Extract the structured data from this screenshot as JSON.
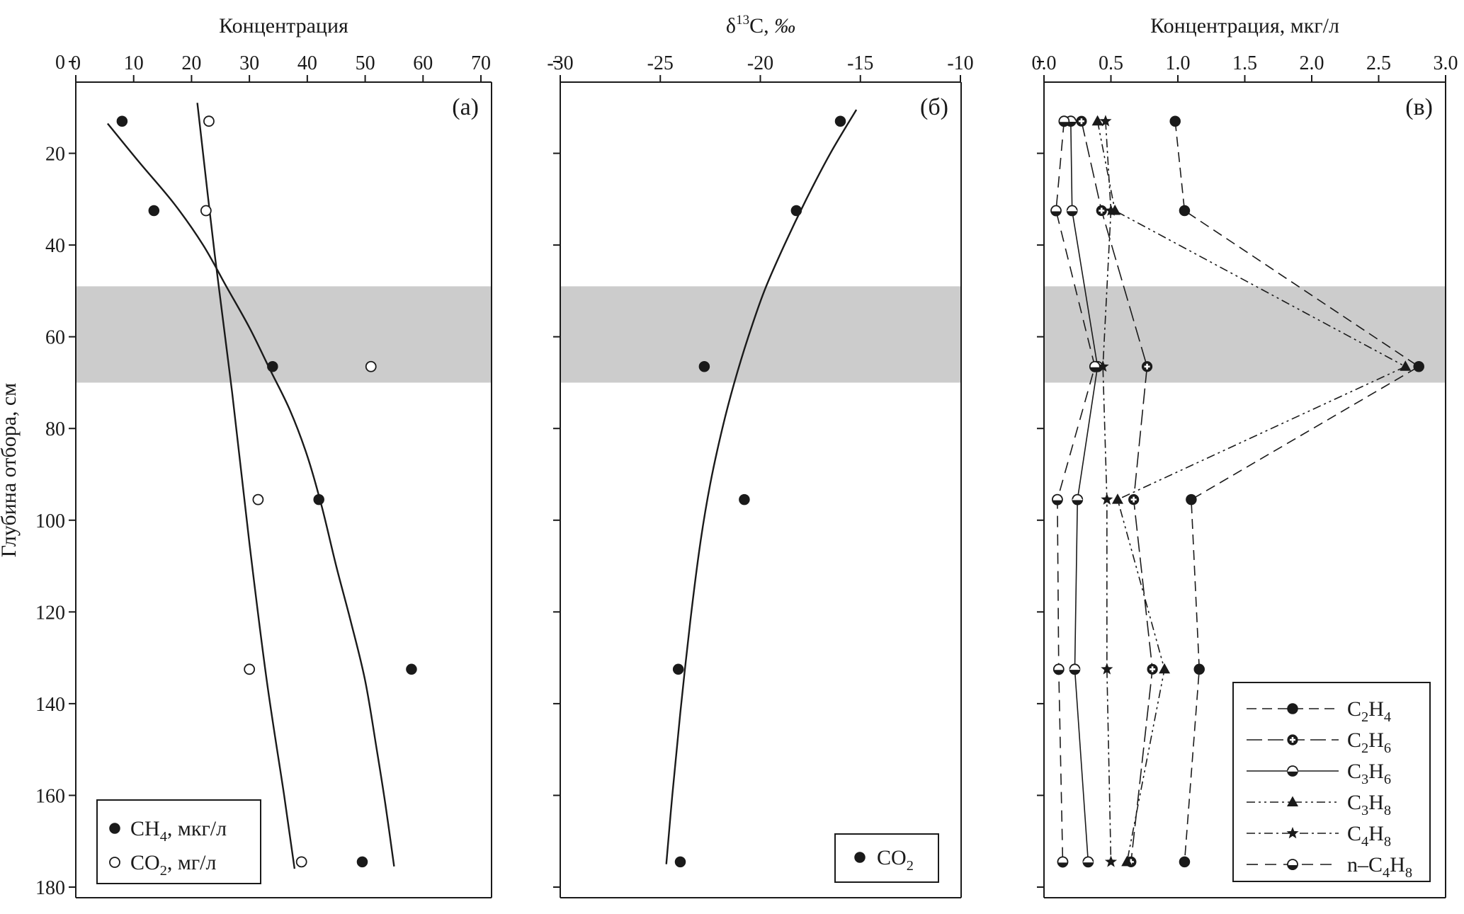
{
  "ylabel": "Глубина отбора, см",
  "band": {
    "from": 49,
    "to": 70,
    "color": "#cccccc"
  },
  "chart_data": [
    {
      "type": "scatter",
      "panel_label": "(а)",
      "xlabel": "Концентрация",
      "xlim": [
        0,
        70
      ],
      "xticks": [
        0,
        10,
        20,
        30,
        40,
        50,
        60,
        70
      ],
      "ylim": [
        0,
        180
      ],
      "yticks": [
        0,
        20,
        40,
        60,
        80,
        100,
        120,
        140,
        160,
        180
      ],
      "legend_placement": "bottom-left",
      "series": [
        {
          "name": "CH4, мкг/л",
          "name_parts": {
            "base": "CH",
            "sub": "4",
            "rest": ", мкг/л"
          },
          "marker": "filled-circle",
          "points": [
            [
              8,
              13
            ],
            [
              13.5,
              32.5
            ],
            [
              34,
              66.5
            ],
            [
              42,
              95.5
            ],
            [
              58,
              132.5
            ],
            [
              49.5,
              174.5
            ]
          ],
          "trend": [
            [
              5.5,
              13.5
            ],
            [
              11,
              22
            ],
            [
              17,
              31
            ],
            [
              22,
              40
            ],
            [
              26,
              49
            ],
            [
              30,
              58
            ],
            [
              33.5,
              67
            ],
            [
              37,
              76
            ],
            [
              40,
              86
            ],
            [
              42.5,
              97
            ],
            [
              45,
              110
            ],
            [
              47.5,
              122
            ],
            [
              50,
              135
            ],
            [
              52,
              150
            ],
            [
              53.5,
              162
            ],
            [
              55,
              175.5
            ]
          ]
        },
        {
          "name": "CO2, мг/л",
          "name_parts": {
            "base": "CO",
            "sub": "2",
            "rest": ", мг/л"
          },
          "marker": "open-circle",
          "points": [
            [
              23,
              13
            ],
            [
              22.5,
              32.5
            ],
            [
              51,
              66.5
            ],
            [
              31.5,
              95.5
            ],
            [
              30,
              132.5
            ],
            [
              39,
              174.5
            ]
          ],
          "trend": [
            [
              21,
              9
            ],
            [
              24,
              42
            ],
            [
              27,
              72
            ],
            [
              30,
              105
            ],
            [
              33,
              135
            ],
            [
              36,
              160
            ],
            [
              37.8,
              176
            ]
          ]
        }
      ]
    },
    {
      "type": "scatter",
      "panel_label": "(б)",
      "xlabel_parts": {
        "delta": "δ",
        "sup": "13",
        "mid": "C, ",
        "unit": "‰"
      },
      "xlim": [
        -30,
        -10
      ],
      "xticks": [
        -30,
        -25,
        -20,
        -15,
        -10
      ],
      "ylim": [
        0,
        180
      ],
      "yticks": [
        0,
        20,
        40,
        60,
        80,
        100,
        120,
        140,
        160,
        180
      ],
      "legend_placement": "bottom-right",
      "series": [
        {
          "name": "CO2",
          "name_parts": {
            "base": "CO",
            "sub": "2",
            "rest": ""
          },
          "marker": "filled-circle",
          "points": [
            [
              -16,
              13
            ],
            [
              -18.2,
              32.5
            ],
            [
              -22.8,
              66.5
            ],
            [
              -20.8,
              95.5
            ],
            [
              -24.1,
              132.5
            ],
            [
              -24,
              174.5
            ]
          ],
          "trend": [
            [
              -15.2,
              10.5
            ],
            [
              -16.5,
              20
            ],
            [
              -17.7,
              30
            ],
            [
              -18.8,
              40
            ],
            [
              -19.8,
              50
            ],
            [
              -20.6,
              60
            ],
            [
              -21.3,
              70
            ],
            [
              -21.9,
              80
            ],
            [
              -22.5,
              92
            ],
            [
              -23,
              105
            ],
            [
              -23.5,
              122
            ],
            [
              -24,
              142
            ],
            [
              -24.4,
              160
            ],
            [
              -24.7,
              175
            ]
          ]
        }
      ]
    },
    {
      "type": "line",
      "panel_label": "(в)",
      "xlabel": "Концентрация, мкг/л",
      "xlim": [
        0,
        3
      ],
      "xticks": [
        0,
        0.5,
        1,
        1.5,
        2,
        2.5,
        3
      ],
      "xtick_labels": [
        "0.0",
        "0.5",
        "1.0",
        "1.5",
        "2.0",
        "2.5",
        "3.0"
      ],
      "ylim": [
        0,
        180
      ],
      "yticks": [
        0,
        20,
        40,
        60,
        80,
        100,
        120,
        140,
        160,
        180
      ],
      "legend_placement": "bottom-right",
      "depths": [
        13,
        32.5,
        66.5,
        95.5,
        132.5,
        174.5
      ],
      "series": [
        {
          "name": "C2H4",
          "name_parts": {
            "base": "C",
            "s1": "2",
            "mid": "H",
            "s2": "4"
          },
          "marker": "filled-circle",
          "dash": "14,8",
          "values": [
            0.98,
            1.05,
            2.8,
            1.1,
            1.16,
            1.05
          ]
        },
        {
          "name": "C2H6",
          "name_parts": {
            "base": "C",
            "s1": "2",
            "mid": "H",
            "s2": "6"
          },
          "marker": "cross-circle",
          "dash": "22,8",
          "values": [
            0.28,
            0.43,
            0.77,
            0.67,
            0.81,
            0.65
          ]
        },
        {
          "name": "C3H6",
          "name_parts": {
            "base": "C",
            "s1": "3",
            "mid": "H",
            "s2": "6"
          },
          "marker": "half-circle",
          "dash": "",
          "values": [
            0.2,
            0.21,
            0.4,
            0.25,
            0.23,
            0.33
          ]
        },
        {
          "name": "C3H8",
          "name_parts": {
            "base": "C",
            "s1": "3",
            "mid": "H",
            "s2": "8"
          },
          "marker": "filled-triangle",
          "dash": "12,5,3,5,3,5",
          "values": [
            0.4,
            0.53,
            2.7,
            0.55,
            0.9,
            0.62
          ]
        },
        {
          "name": "C4H8",
          "name_parts": {
            "base": "C",
            "s1": "4",
            "mid": "H",
            "s2": "8"
          },
          "marker": "filled-star",
          "dash": "12,5,3,5",
          "values": [
            0.46,
            0.5,
            0.44,
            0.47,
            0.47,
            0.5
          ]
        },
        {
          "name": "n-C4H8",
          "name_parts": {
            "base": "n–C",
            "s1": "4",
            "mid": "H",
            "s2": "8"
          },
          "marker": "half-diamond-circle",
          "dash": "16,10",
          "values": [
            0.15,
            0.09,
            0.38,
            0.1,
            0.11,
            0.14
          ]
        }
      ]
    }
  ]
}
